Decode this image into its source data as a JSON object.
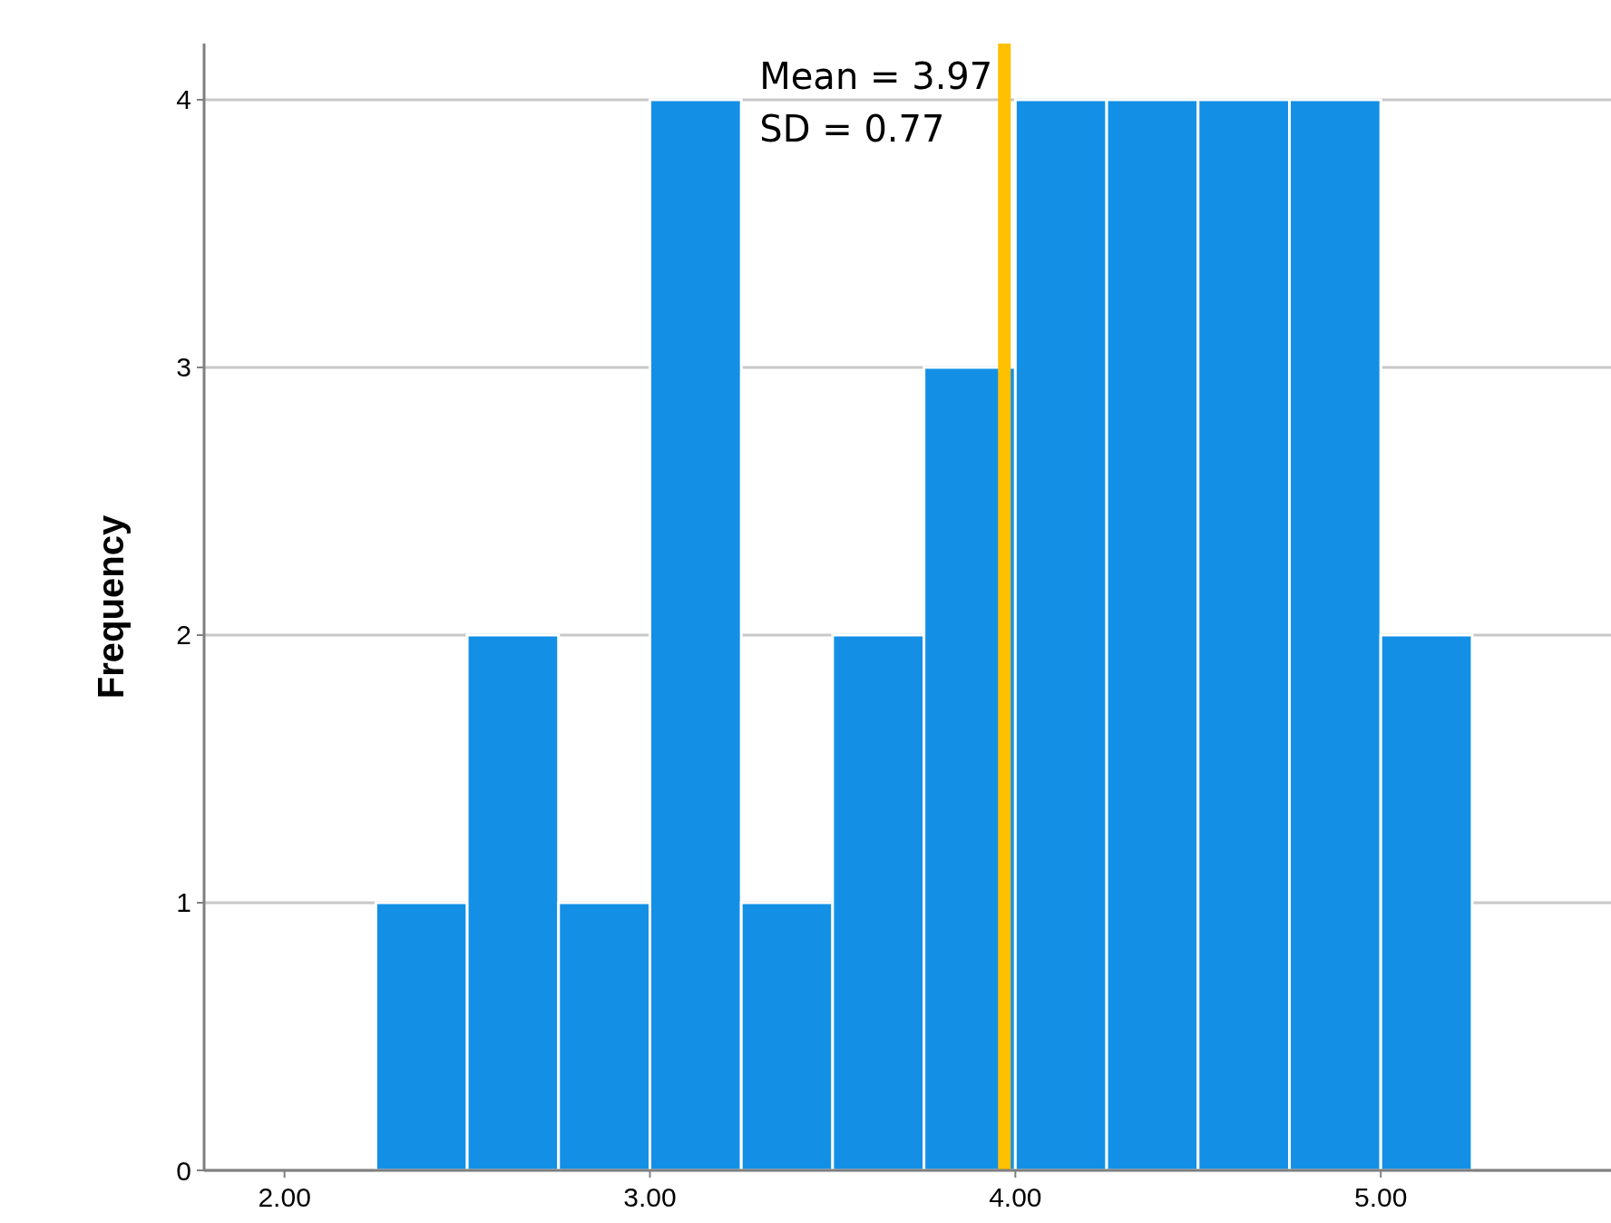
{
  "chart_data": {
    "type": "histogram",
    "ylabel": "Frequency",
    "bins": [
      2.25,
      2.5,
      2.75,
      3.0,
      3.25,
      3.5,
      3.75,
      4.0,
      4.25,
      4.5,
      4.75,
      5.0,
      5.25
    ],
    "values": [
      1,
      2,
      1,
      4,
      1,
      2,
      3,
      4,
      4,
      4,
      4,
      2
    ],
    "color": "#1390e6",
    "xlim": [
      1.78,
      5.63
    ],
    "ylim": [
      0,
      4.21
    ],
    "xticks": [
      {
        "value": 2,
        "label": "2.00"
      },
      {
        "value": 3,
        "label": "3.00"
      },
      {
        "value": 4,
        "label": "4.00"
      },
      {
        "value": 5,
        "label": "5.00"
      }
    ],
    "yticks": [
      0,
      1,
      2,
      3,
      4
    ],
    "grid": "y",
    "ref_lines": [
      {
        "axis": "x",
        "value": 3.97,
        "color": "#ffc000"
      }
    ],
    "annotations": [
      "Mean = 3.97",
      "SD = 0.77"
    ]
  }
}
